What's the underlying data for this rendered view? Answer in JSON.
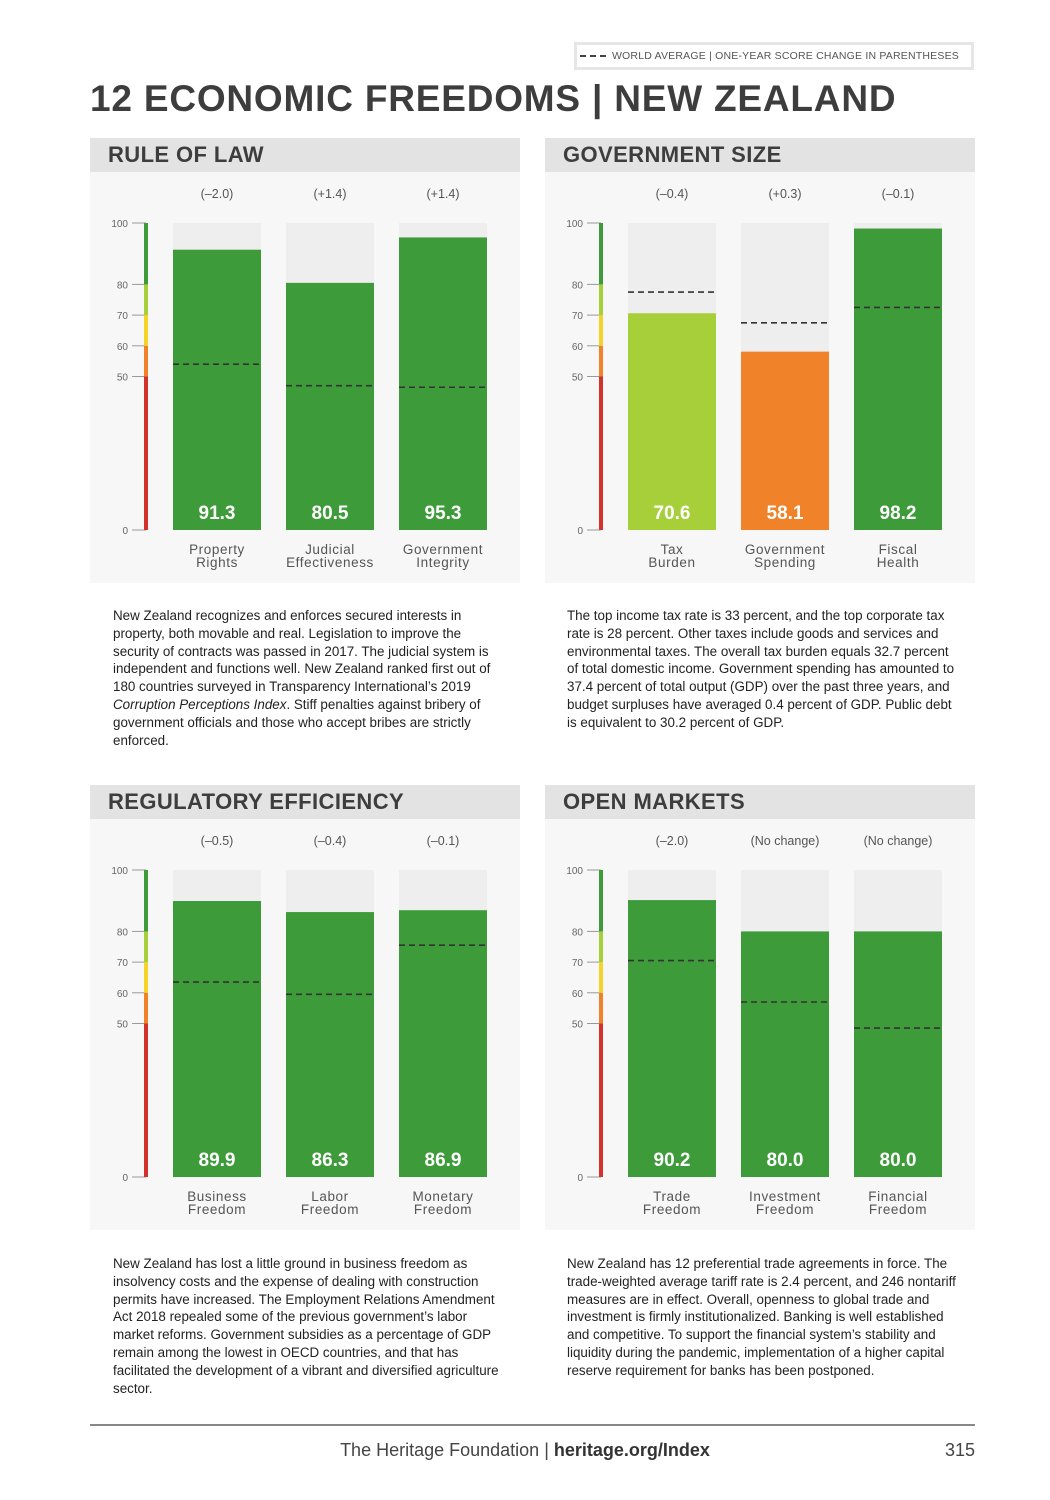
{
  "legend": {
    "text": "WORLD AVERAGE | ONE-YEAR SCORE CHANGE IN PARENTHESES"
  },
  "title": "12 ECONOMIC FREEDOMS | NEW ZEALAND",
  "scale": {
    "ticks": [
      0,
      50,
      60,
      70,
      80,
      100
    ]
  },
  "chart_data": [
    {
      "type": "bar",
      "title": "RULE OF LAW",
      "categories": [
        "Property Rights",
        "Judicial Effectiveness",
        "Government Integrity"
      ],
      "values": [
        91.3,
        80.5,
        95.3
      ],
      "value_labels": [
        "91.3",
        "80.5",
        "95.3"
      ],
      "changes": [
        "(–2.0)",
        "(+1.4)",
        "(+1.4)"
      ],
      "world_average": [
        54,
        47,
        46.5
      ],
      "colors": [
        "#3d9b3a",
        "#3d9b3a",
        "#3d9b3a"
      ],
      "ylim": [
        0,
        100
      ]
    },
    {
      "type": "bar",
      "title": "GOVERNMENT SIZE",
      "categories": [
        "Tax Burden",
        "Government Spending",
        "Fiscal Health"
      ],
      "values": [
        70.6,
        58.1,
        98.2
      ],
      "value_labels": [
        "70.6",
        "58.1",
        "98.2"
      ],
      "changes": [
        "(–0.4)",
        "(+0.3)",
        "(–0.1)"
      ],
      "world_average": [
        77.5,
        67.5,
        72.5
      ],
      "colors": [
        "#a6cf3a",
        "#f0832a",
        "#3d9b3a"
      ],
      "ylim": [
        0,
        100
      ]
    },
    {
      "type": "bar",
      "title": "REGULATORY EFFICIENCY",
      "categories": [
        "Business Freedom",
        "Labor Freedom",
        "Monetary Freedom"
      ],
      "values": [
        89.9,
        86.3,
        86.9
      ],
      "value_labels": [
        "89.9",
        "86.3",
        "86.9"
      ],
      "changes": [
        "(–0.5)",
        "(–0.4)",
        "(–0.1)"
      ],
      "world_average": [
        63.5,
        59.5,
        75.5
      ],
      "colors": [
        "#3d9b3a",
        "#3d9b3a",
        "#3d9b3a"
      ],
      "ylim": [
        0,
        100
      ]
    },
    {
      "type": "bar",
      "title": "OPEN MARKETS",
      "categories": [
        "Trade Freedom",
        "Investment Freedom",
        "Financial Freedom"
      ],
      "values": [
        90.2,
        80.0,
        80.0
      ],
      "value_labels": [
        "90.2",
        "80.0",
        "80.0"
      ],
      "changes": [
        "(–2.0)",
        "(No change)",
        "(No change)"
      ],
      "world_average": [
        70.5,
        57,
        48.5
      ],
      "colors": [
        "#3d9b3a",
        "#3d9b3a",
        "#3d9b3a"
      ],
      "ylim": [
        0,
        100
      ]
    }
  ],
  "descriptions": {
    "rule_of_law": {
      "before": "New Zealand recognizes and enforces secured interests in property, both movable and real. Legislation to improve the security of contracts was passed in 2017. The judicial system is independent and functions well. New Zealand ranked first out of 180 countries surveyed in Transparency International’s 2019 ",
      "italic": "Corruption Perceptions Index",
      "after": ". Stiff penalties against bribery of government officials and those who accept bribes are strictly enforced."
    },
    "government_size": "The top income tax rate is 33 percent, and the top corporate tax rate is 28 percent. Other taxes include goods and services and environmental taxes. The overall tax burden equals 32.7 percent of total domestic income. Government spending has amounted to 37.4 percent of total output (GDP) over the past three years, and budget surpluses have averaged 0.4 percent of GDP. Public debt is equivalent to 30.2 percent of GDP.",
    "regulatory_efficiency": "New Zealand has lost a little ground in business freedom as insolvency costs and the expense of dealing with construction permits have increased. The Employment Relations Amendment Act 2018 repealed some of the previous government’s labor market reforms. Government subsidies as a percentage of GDP remain among the lowest in OECD countries, and that has facilitated the development of a vibrant and diversified agriculture sector.",
    "open_markets": "New Zealand has 12 preferential trade agreements in force. The trade-weighted average tariff rate is 2.4 percent, and 246 nontariff measures are in effect. Overall, openness to global trade and investment is firmly institutionalized. Banking is well established and competitive. To support the financial system’s stability and liquidity during the pandemic, implementation of a higher capital reserve requirement for banks has been postponed."
  },
  "footer": {
    "org": "The Heritage Foundation | ",
    "url": "heritage.org/Index",
    "page": "315"
  }
}
